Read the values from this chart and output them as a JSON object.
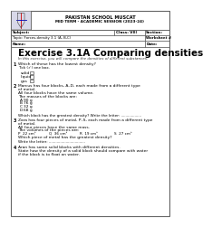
{
  "header": {
    "school": "PAKISTAN SCHOOL MUSCAT",
    "term": "MID TERM - ACADEMIC SESSION (2023-24)",
    "subject_label": "Subject:",
    "class_label": "Class: VIII",
    "section_label": "Section:",
    "topic": "Topic: Forces-density 3.1 (A, B,C)",
    "worksheet": "Worksheet #",
    "name_label": "Name:",
    "date_label": "Date:"
  },
  "title": "Exercise 3.1A Comparing densities",
  "subtitle": "In this exercise, you will compare the densities of different substances.",
  "questions": [
    {
      "num": "1",
      "text": "Which of these has the lowest density?",
      "sub": "Tick (✓) one box.",
      "options": [
        "solid",
        "liquid",
        "gas"
      ]
    },
    {
      "num": "2",
      "text1": "Marcus has four blocks, A–D, each made from a different type",
      "text2": "of metal.",
      "sub1": "All four blocks have the same volume.",
      "sub2": "The masses of the blocks are:",
      "items": [
        [
          "A",
          "90 g"
        ],
        [
          "B",
          "76 g"
        ],
        [
          "C",
          "32 g"
        ],
        [
          "D",
          "68 g"
        ]
      ],
      "question": "Which block has the greatest density? Write the letter: .................."
    },
    {
      "num": "3",
      "text1": "Zara has four pieces of metal, P–S, each made from a different type",
      "text2": "of metal.",
      "sub1": "All four pieces have the same mass.",
      "sub2": "The volumes of the pieces are:",
      "items": [
        [
          "P",
          "22 cm³"
        ],
        [
          "Q",
          "36 cm³"
        ],
        [
          "R",
          "19 cm³"
        ],
        [
          "S",
          "27 cm³"
        ]
      ],
      "question1": "Which piece of metal has the greatest density?",
      "question2": "Write the letter: ................................"
    },
    {
      "num": "4",
      "text1": "Aran has some solid blocks with different densities.",
      "text2": "State how the density of a solid block should compare with water",
      "text3": "if the block is to float on water."
    }
  ]
}
